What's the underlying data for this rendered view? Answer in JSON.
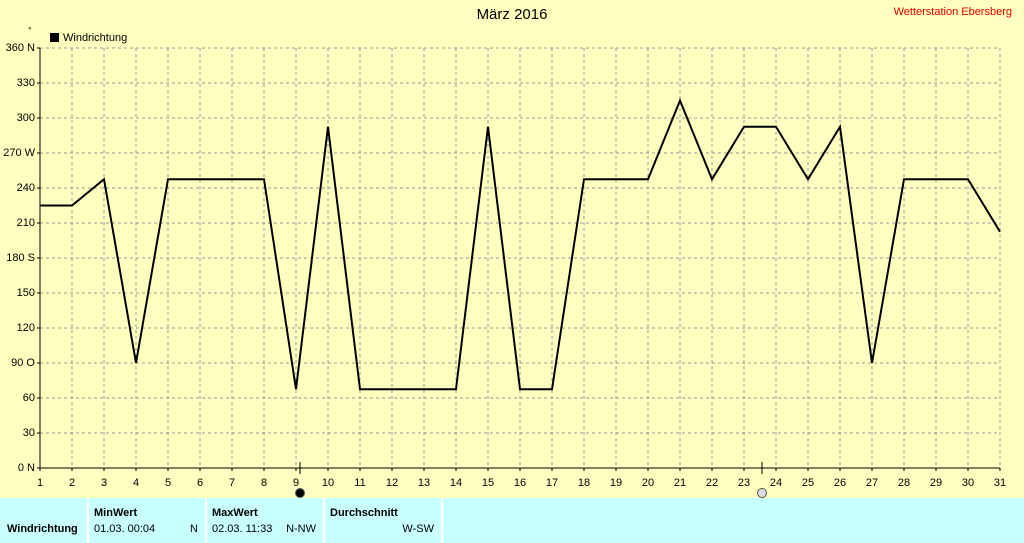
{
  "chart_data": {
    "type": "line",
    "title": "März 2016",
    "subtitle": "Wetterstation Ebersberg",
    "y_unit": "°",
    "x": [
      1,
      2,
      3,
      4,
      5,
      6,
      7,
      8,
      9,
      10,
      11,
      12,
      13,
      14,
      15,
      16,
      17,
      18,
      19,
      20,
      21,
      22,
      23,
      24,
      25,
      26,
      27,
      28,
      29,
      30,
      31
    ],
    "xlim": [
      1,
      31
    ],
    "xticks": [
      1,
      2,
      3,
      4,
      5,
      6,
      7,
      8,
      9,
      10,
      11,
      12,
      13,
      14,
      15,
      16,
      17,
      18,
      19,
      20,
      21,
      22,
      23,
      24,
      25,
      26,
      27,
      28,
      29,
      30,
      31
    ],
    "ylim": [
      0,
      360
    ],
    "yticks": [
      {
        "value": 0,
        "label": "0 N"
      },
      30,
      60,
      {
        "value": 90,
        "label": "90 O"
      },
      120,
      150,
      {
        "value": 180,
        "label": "180 S"
      },
      210,
      240,
      {
        "value": 270,
        "label": "270 W"
      },
      300,
      330,
      {
        "value": 360,
        "label": "360 N"
      }
    ],
    "grid": true,
    "legend": "top-left",
    "series": [
      {
        "name": "Windrichtung",
        "color": "#000000",
        "values": [
          225,
          225,
          247.5,
          90,
          247.5,
          247.5,
          247.5,
          247.5,
          67.5,
          292.5,
          67.5,
          67.5,
          67.5,
          67.5,
          292.5,
          67.5,
          67.5,
          247.5,
          247.5,
          247.5,
          315,
          247.5,
          292.5,
          292.5,
          247.5,
          292.5,
          90,
          247.5,
          247.5,
          247.5,
          202.5
        ]
      }
    ]
  },
  "summary_table": {
    "row_label": "Windrichtung",
    "columns": [
      {
        "header": "MinWert",
        "time": "01.03.  00:04",
        "value": "N"
      },
      {
        "header": "MaxWert",
        "time": "02.03.  11:33",
        "value": "N-NW"
      },
      {
        "header": "Durchschnitt",
        "value": "W-SW"
      }
    ]
  }
}
